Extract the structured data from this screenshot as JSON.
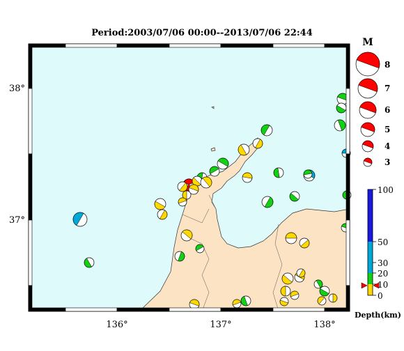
{
  "title": "Period:2003/07/06 00:00--2013/07/06 22:44",
  "lon_ticks": [
    "136°",
    "137°",
    "138°"
  ],
  "lat_ticks": [
    "38°",
    "37°"
  ],
  "magnitude_legend": {
    "label": "M",
    "values": [
      "8",
      "7",
      "6",
      "5",
      "4",
      "3"
    ]
  },
  "depth_scale": {
    "label": "Depth(km)",
    "ticks": [
      "100",
      "50",
      "30",
      "20",
      "10",
      "0"
    ],
    "colors": {
      "shallow": "#ffd800",
      "d10_20": "#12d012",
      "d20_50": "#00a8d8",
      "d50_100": "#1818e0"
    }
  },
  "colors": {
    "sea": "#dffafb",
    "land": "#fbe3c4",
    "mainshock": "#ff0000",
    "marker": "#ff0000"
  }
}
